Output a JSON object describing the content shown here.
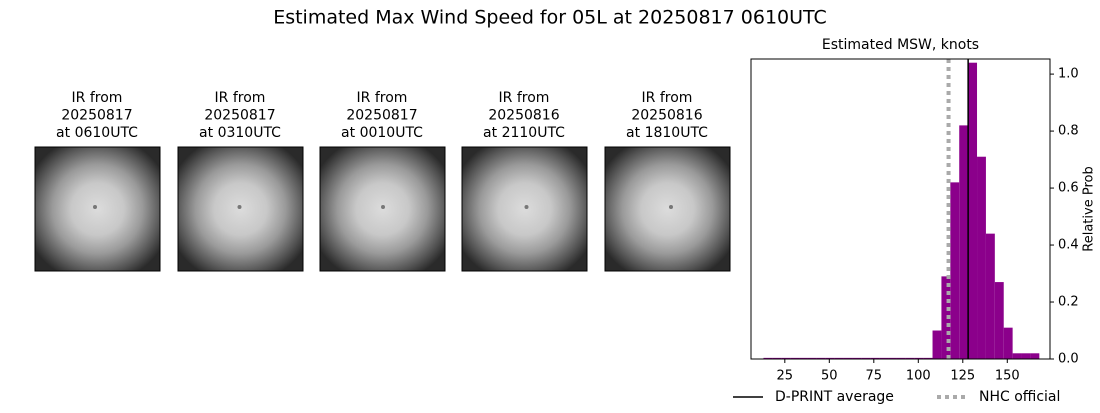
{
  "title": "Estimated Max Wind Speed for 05L at 20250817 0610UTC",
  "panels": [
    {
      "lines": [
        "IR from",
        "20250817",
        "at 0610UTC"
      ]
    },
    {
      "lines": [
        "IR from",
        "20250817",
        "at 0310UTC"
      ]
    },
    {
      "lines": [
        "IR from",
        "20250817",
        "at 0010UTC"
      ]
    },
    {
      "lines": [
        "IR from",
        "20250816",
        "at 2110UTC"
      ]
    },
    {
      "lines": [
        "IR from",
        "20250816",
        "at 1810UTC"
      ]
    }
  ],
  "chart_data": {
    "type": "histogram",
    "title": "Estimated MSW, knots",
    "y_label": "Relative Prob",
    "bins": [
      13,
      18,
      23,
      28,
      33,
      38,
      43,
      48,
      53,
      58,
      63,
      68,
      73,
      78,
      83,
      88,
      93,
      98,
      103,
      108,
      113,
      118,
      123,
      128,
      133,
      138,
      143,
      148,
      153,
      158,
      163,
      168
    ],
    "values": [
      0.004,
      0.004,
      0.004,
      0.004,
      0.004,
      0.004,
      0.004,
      0.004,
      0.004,
      0.004,
      0.004,
      0.004,
      0.004,
      0.004,
      0.004,
      0.004,
      0.004,
      0.004,
      0.004,
      0.1,
      0.29,
      0.62,
      0.82,
      1.04,
      0.71,
      0.44,
      0.27,
      0.11,
      0.02,
      0.02,
      0.02
    ],
    "color": "#8b008b",
    "xlim": [
      6,
      174
    ],
    "ylim": [
      0,
      1.053
    ],
    "xticks": [
      25,
      50,
      75,
      100,
      125,
      150
    ],
    "yticks": [
      {
        "value": 0,
        "label": "0.0"
      },
      0.2,
      0.4,
      0.6,
      0.8,
      {
        "value": 1,
        "label": "1.0"
      }
    ],
    "lines": [
      {
        "name": "D-PRINT average",
        "value": 128,
        "color": "#000000",
        "style": "solid"
      },
      {
        "name": "NHC official",
        "value": 117,
        "color": "#aaaaaa",
        "style": "dotted"
      }
    ]
  }
}
